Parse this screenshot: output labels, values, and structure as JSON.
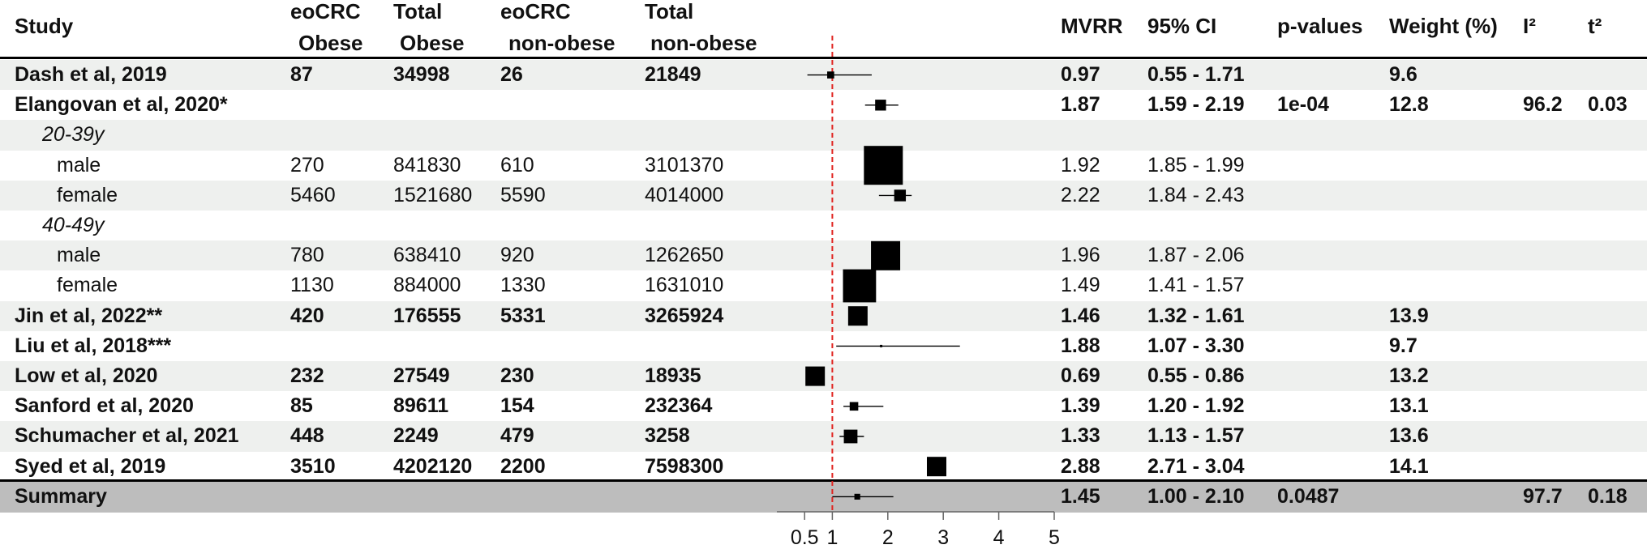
{
  "table": {
    "headers": {
      "study": "Study",
      "eocrc_obese": [
        "eoCRC",
        "Obese"
      ],
      "total_obese": [
        "Total",
        "Obese"
      ],
      "eocrc_nonobese": [
        "eoCRC",
        "non-obese"
      ],
      "total_nonobese": [
        "Total",
        "non-obese"
      ],
      "mvrr": "MVRR",
      "ci": "95% CI",
      "pval": "p-values",
      "weight": "Weight (%)",
      "i2": "I²",
      "t2": "t²"
    },
    "rows": [
      {
        "label": "Dash et al, 2019",
        "type": "study",
        "a": "87",
        "b": "34998",
        "c": "26",
        "d": "21849",
        "mvrr": "0.97",
        "ci": "0.55 - 1.71",
        "p": "",
        "w": "9.6",
        "i2": "",
        "t2": ""
      },
      {
        "label": "Elangovan et al, 2020*",
        "type": "study",
        "a": "",
        "b": "",
        "c": "",
        "d": "",
        "mvrr": "1.87",
        "ci": "1.59 - 2.19",
        "p": "1e-04",
        "w": "12.8",
        "i2": "96.2",
        "t2": "0.03"
      },
      {
        "label": "20-39y",
        "type": "group",
        "a": "",
        "b": "",
        "c": "",
        "d": "",
        "mvrr": "",
        "ci": "",
        "p": "",
        "w": "",
        "i2": "",
        "t2": ""
      },
      {
        "label": "male",
        "type": "sub",
        "a": "270",
        "b": "841830",
        "c": "610",
        "d": "3101370",
        "mvrr": "1.92",
        "ci": "1.85 - 1.99",
        "p": "",
        "w": "",
        "i2": "",
        "t2": ""
      },
      {
        "label": "female",
        "type": "sub",
        "a": "5460",
        "b": "1521680",
        "c": "5590",
        "d": "4014000",
        "mvrr": "2.22",
        "ci": "1.84 - 2.43",
        "p": "",
        "w": "",
        "i2": "",
        "t2": ""
      },
      {
        "label": "40-49y",
        "type": "group",
        "a": "",
        "b": "",
        "c": "",
        "d": "",
        "mvrr": "",
        "ci": "",
        "p": "",
        "w": "",
        "i2": "",
        "t2": ""
      },
      {
        "label": "male",
        "type": "sub",
        "a": "780",
        "b": "638410",
        "c": "920",
        "d": "1262650",
        "mvrr": "1.96",
        "ci": "1.87 - 2.06",
        "p": "",
        "w": "",
        "i2": "",
        "t2": ""
      },
      {
        "label": "female",
        "type": "sub",
        "a": "1130",
        "b": "884000",
        "c": "1330",
        "d": "1631010",
        "mvrr": "1.49",
        "ci": "1.41 - 1.57",
        "p": "",
        "w": "",
        "i2": "",
        "t2": ""
      },
      {
        "label": "Jin et al, 2022**",
        "type": "study",
        "a": "420",
        "b": "176555",
        "c": "5331",
        "d": "3265924",
        "mvrr": "1.46",
        "ci": "1.32 - 1.61",
        "p": "",
        "w": "13.9",
        "i2": "",
        "t2": ""
      },
      {
        "label": "Liu et al, 2018***",
        "type": "study",
        "a": "",
        "b": "",
        "c": "",
        "d": "",
        "mvrr": "1.88",
        "ci": "1.07 - 3.30",
        "p": "",
        "w": "9.7",
        "i2": "",
        "t2": ""
      },
      {
        "label": "Low et al, 2020",
        "type": "study",
        "a": "232",
        "b": "27549",
        "c": "230",
        "d": "18935",
        "mvrr": "0.69",
        "ci": "0.55 - 0.86",
        "p": "",
        "w": "13.2",
        "i2": "",
        "t2": ""
      },
      {
        "label": "Sanford et al, 2020",
        "type": "study",
        "a": "85",
        "b": "89611",
        "c": "154",
        "d": "232364",
        "mvrr": "1.39",
        "ci": "1.20 - 1.92",
        "p": "",
        "w": "13.1",
        "i2": "",
        "t2": ""
      },
      {
        "label": "Schumacher et al, 2021",
        "type": "study",
        "a": "448",
        "b": "2249",
        "c": "479",
        "d": "3258",
        "mvrr": "1.33",
        "ci": "1.13 - 1.57",
        "p": "",
        "w": "13.6",
        "i2": "",
        "t2": ""
      },
      {
        "label": "Syed et al, 2019",
        "type": "study",
        "a": "3510",
        "b": "4202120",
        "c": "2200",
        "d": "7598300",
        "mvrr": "2.88",
        "ci": "2.71 - 3.04",
        "p": "",
        "w": "14.1",
        "i2": "",
        "t2": ""
      },
      {
        "label": "Summary",
        "type": "summary",
        "a": "",
        "b": "",
        "c": "",
        "d": "",
        "mvrr": "1.45",
        "ci": "1.00 - 2.10",
        "p": "0.0487",
        "w": "",
        "i2": "97.7",
        "t2": "0.18"
      }
    ]
  },
  "chart_data": {
    "type": "forest",
    "xlim": [
      0,
      5
    ],
    "xticks": [
      0.5,
      1,
      2,
      3,
      4,
      5
    ],
    "xtick_labels": [
      "0.5",
      "1",
      "2",
      "3",
      "4",
      "5"
    ],
    "reference_line": 1,
    "estimates": [
      {
        "est": 0.97,
        "lo": 0.55,
        "hi": 1.71,
        "box_rel": 0.18
      },
      {
        "est": 1.87,
        "lo": 1.59,
        "hi": 2.19,
        "box_rel": 0.28
      },
      null,
      {
        "est": 1.92,
        "lo": 1.85,
        "hi": 1.99,
        "box_rel": 1.0
      },
      {
        "est": 2.22,
        "lo": 1.84,
        "hi": 2.43,
        "box_rel": 0.3
      },
      null,
      {
        "est": 1.96,
        "lo": 1.87,
        "hi": 2.06,
        "box_rel": 0.75
      },
      {
        "est": 1.49,
        "lo": 1.41,
        "hi": 1.57,
        "box_rel": 0.85
      },
      {
        "est": 1.46,
        "lo": 1.32,
        "hi": 1.61,
        "box_rel": 0.5
      },
      {
        "est": 1.88,
        "lo": 1.07,
        "hi": 3.3,
        "box_rel": 0.05
      },
      {
        "est": 0.69,
        "lo": 0.55,
        "hi": 0.86,
        "box_rel": 0.5
      },
      {
        "est": 1.39,
        "lo": 1.2,
        "hi": 1.92,
        "box_rel": 0.22
      },
      {
        "est": 1.33,
        "lo": 1.13,
        "hi": 1.57,
        "box_rel": 0.35
      },
      {
        "est": 2.88,
        "lo": 2.71,
        "hi": 3.04,
        "box_rel": 0.5
      },
      {
        "est": 1.45,
        "lo": 1.0,
        "hi": 2.1,
        "box_rel": 0.15
      }
    ],
    "colors": {
      "marker": "#000000",
      "reference_line": "#e0231f",
      "row_shade": "#eef0ee",
      "summary_shade": "#bdbdbd"
    }
  }
}
